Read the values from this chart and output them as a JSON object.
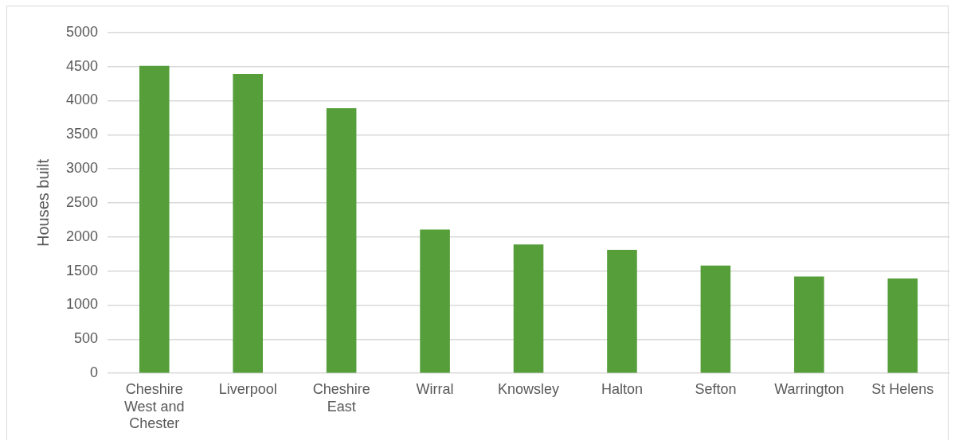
{
  "chart_data": {
    "type": "bar",
    "ylabel": "Houses built",
    "categories": [
      "Cheshire West and Chester",
      "Liverpool",
      "Cheshire East",
      "Wirral",
      "Knowsley",
      "Halton",
      "Sefton",
      "Warrington",
      "St Helens"
    ],
    "values": [
      4510,
      4390,
      3890,
      2110,
      1890,
      1810,
      1580,
      1420,
      1390
    ],
    "color": "#559e3a",
    "ylim": [
      0,
      5000
    ],
    "yticks": [
      0,
      500,
      1000,
      1500,
      2000,
      2500,
      3000,
      3500,
      4000,
      4500,
      5000
    ],
    "grid": "y"
  }
}
